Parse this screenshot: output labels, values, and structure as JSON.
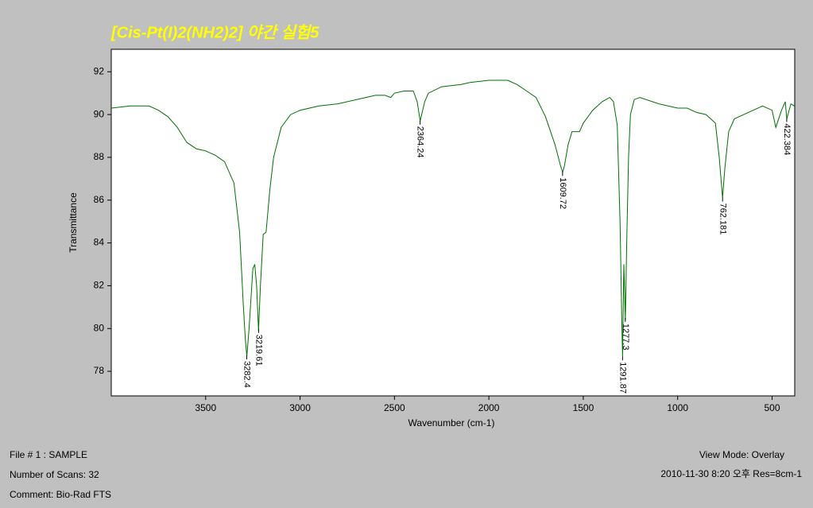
{
  "chart_data": {
    "type": "line",
    "title": "[Cis-Pt(I)2(NH2)2] 야간 실험5",
    "x_label": "Wavenumber (cm-1)",
    "y_label": "Transmittance",
    "xlim": [
      4000,
      380
    ],
    "ylim": [
      76.85,
      93.05
    ],
    "xticks": [
      3500,
      3000,
      2500,
      2000,
      1500,
      1000,
      500
    ],
    "yticks": [
      78,
      80,
      82,
      84,
      86,
      88,
      90,
      92
    ],
    "color": "#007000",
    "x": [
      4000,
      3900,
      3800,
      3750,
      3700,
      3650,
      3600,
      3550,
      3500,
      3450,
      3400,
      3350,
      3320,
      3300,
      3290,
      3282,
      3270,
      3250,
      3240,
      3230,
      3220,
      3210,
      3195,
      3180,
      3160,
      3140,
      3100,
      3050,
      3000,
      2900,
      2800,
      2700,
      2600,
      2550,
      2520,
      2500,
      2450,
      2400,
      2380,
      2364,
      2340,
      2320,
      2250,
      2150,
      2100,
      2000,
      1950,
      1900,
      1850,
      1800,
      1750,
      1700,
      1650,
      1620,
      1609,
      1600,
      1580,
      1560,
      1520,
      1500,
      1450,
      1400,
      1360,
      1340,
      1320,
      1305,
      1295,
      1291.87,
      1285,
      1277,
      1270,
      1260,
      1250,
      1230,
      1200,
      1100,
      1000,
      950,
      900,
      850,
      800,
      780,
      762,
      750,
      730,
      700,
      650,
      600,
      550,
      500,
      480,
      450,
      430,
      422,
      400,
      382
    ],
    "values": [
      90.3,
      90.4,
      90.4,
      90.2,
      89.9,
      89.4,
      88.7,
      88.4,
      88.3,
      88.1,
      87.8,
      86.8,
      84.5,
      81.0,
      79.5,
      78.7,
      80.0,
      82.8,
      83.0,
      82.0,
      79.9,
      82.0,
      84.4,
      84.5,
      86.5,
      88.0,
      89.4,
      90.0,
      90.2,
      90.4,
      90.5,
      90.7,
      90.9,
      90.9,
      90.8,
      91.0,
      91.1,
      91.1,
      90.6,
      89.7,
      90.6,
      91.0,
      91.3,
      91.4,
      91.5,
      91.6,
      91.6,
      91.6,
      91.4,
      91.1,
      90.8,
      89.9,
      88.6,
      87.6,
      87.3,
      87.6,
      88.6,
      89.2,
      89.2,
      89.6,
      90.2,
      90.6,
      90.8,
      90.6,
      89.5,
      85.0,
      80.0,
      78.7,
      83.0,
      80.4,
      84.0,
      88.0,
      90.0,
      90.7,
      90.8,
      90.5,
      90.3,
      90.3,
      90.1,
      90.0,
      89.6,
      88.0,
      86.1,
      87.5,
      89.2,
      89.8,
      90.0,
      90.2,
      90.4,
      90.2,
      89.4,
      90.2,
      90.6,
      89.8,
      90.5,
      90.4
    ],
    "peaks": [
      3282.4,
      3219.61,
      2364.24,
      1609.72,
      1291.87,
      1277.3,
      762.181,
      422.384
    ]
  },
  "info": {
    "file": "File # 1 : SAMPLE",
    "scans": "Number of Scans: 32",
    "comment": "Comment: Bio-Rad FTS",
    "view_mode": "View Mode: Overlay",
    "date": "2010-11-30  8:20 오후   Res=8cm-1"
  }
}
